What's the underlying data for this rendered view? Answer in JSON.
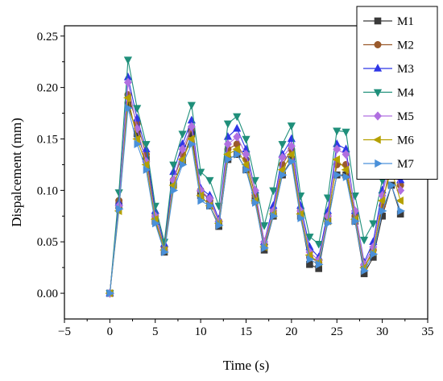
{
  "chart_data": {
    "type": "line",
    "title": "",
    "xlabel": "Time (s)",
    "ylabel": "Dispalcement (mm)",
    "xlim": [
      -5,
      35
    ],
    "ylim": [
      -0.025,
      0.26
    ],
    "xticks": [
      -5,
      0,
      5,
      10,
      15,
      20,
      25,
      30,
      35
    ],
    "yticks": [
      "0.00",
      "0.05",
      "0.10",
      "0.15",
      "0.20",
      "0.25"
    ],
    "x": [
      0,
      1,
      2,
      3,
      4,
      5,
      6,
      7,
      8,
      9,
      10,
      11,
      12,
      13,
      14,
      15,
      16,
      17,
      18,
      19,
      20,
      21,
      22,
      23,
      24,
      25,
      26,
      27,
      28,
      29,
      30,
      31,
      32
    ],
    "legend_position": "top-right",
    "grid": false,
    "series": [
      {
        "name": "M1",
        "color": "#3a3a3a",
        "marker": "square",
        "values": [
          0,
          0.085,
          0.183,
          0.155,
          0.13,
          0.07,
          0.04,
          0.105,
          0.128,
          0.155,
          0.095,
          0.085,
          0.065,
          0.13,
          0.135,
          0.12,
          0.09,
          0.042,
          0.075,
          0.115,
          0.13,
          0.075,
          0.028,
          0.024,
          0.07,
          0.115,
          0.115,
          0.07,
          0.019,
          0.035,
          0.075,
          0.105,
          0.077
        ]
      },
      {
        "name": "M2",
        "color": "#9a5a2c",
        "marker": "circle",
        "values": [
          0,
          0.09,
          0.193,
          0.165,
          0.135,
          0.075,
          0.045,
          0.11,
          0.135,
          0.16,
          0.1,
          0.09,
          0.07,
          0.14,
          0.145,
          0.13,
          0.095,
          0.047,
          0.08,
          0.125,
          0.14,
          0.08,
          0.035,
          0.03,
          0.075,
          0.125,
          0.125,
          0.075,
          0.025,
          0.042,
          0.085,
          0.13,
          0.105
        ]
      },
      {
        "name": "M3",
        "color": "#2e36e6",
        "marker": "triangle-up",
        "values": [
          0,
          0.088,
          0.21,
          0.17,
          0.14,
          0.08,
          0.048,
          0.118,
          0.145,
          0.168,
          0.102,
          0.095,
          0.072,
          0.152,
          0.16,
          0.14,
          0.1,
          0.05,
          0.085,
          0.135,
          0.15,
          0.085,
          0.045,
          0.035,
          0.08,
          0.145,
          0.14,
          0.08,
          0.03,
          0.05,
          0.1,
          0.14,
          0.11
        ]
      },
      {
        "name": "M4",
        "color": "#1f8f7a",
        "marker": "triangle-down",
        "values": [
          0,
          0.098,
          0.227,
          0.18,
          0.145,
          0.085,
          0.05,
          0.125,
          0.155,
          0.183,
          0.118,
          0.11,
          0.085,
          0.165,
          0.172,
          0.15,
          0.11,
          0.066,
          0.1,
          0.145,
          0.163,
          0.095,
          0.055,
          0.048,
          0.093,
          0.158,
          0.157,
          0.095,
          0.052,
          0.068,
          0.11,
          0.148,
          0.123
        ]
      },
      {
        "name": "M5",
        "color": "#b06fe0",
        "marker": "diamond",
        "values": [
          0,
          0.085,
          0.205,
          0.16,
          0.128,
          0.075,
          0.042,
          0.11,
          0.14,
          0.162,
          0.1,
          0.092,
          0.07,
          0.145,
          0.152,
          0.135,
          0.1,
          0.05,
          0.08,
          0.132,
          0.143,
          0.08,
          0.04,
          0.032,
          0.075,
          0.14,
          0.135,
          0.08,
          0.028,
          0.045,
          0.095,
          0.135,
          0.1
        ]
      },
      {
        "name": "M6",
        "color": "#b5a000",
        "marker": "triangle-left",
        "values": [
          0,
          0.08,
          0.19,
          0.15,
          0.125,
          0.072,
          0.042,
          0.105,
          0.13,
          0.15,
          0.095,
          0.085,
          0.068,
          0.135,
          0.14,
          0.125,
          0.09,
          0.045,
          0.077,
          0.12,
          0.135,
          0.077,
          0.037,
          0.03,
          0.07,
          0.13,
          0.12,
          0.072,
          0.025,
          0.04,
          0.09,
          0.12,
          0.09
        ]
      },
      {
        "name": "M7",
        "color": "#4a90d9",
        "marker": "triangle-right",
        "values": [
          0,
          0.082,
          0.18,
          0.145,
          0.12,
          0.068,
          0.04,
          0.1,
          0.125,
          0.145,
          0.09,
          0.085,
          0.066,
          0.13,
          0.135,
          0.12,
          0.088,
          0.044,
          0.075,
          0.115,
          0.128,
          0.073,
          0.033,
          0.028,
          0.068,
          0.115,
          0.113,
          0.07,
          0.022,
          0.038,
          0.08,
          0.105,
          0.08
        ]
      }
    ]
  }
}
